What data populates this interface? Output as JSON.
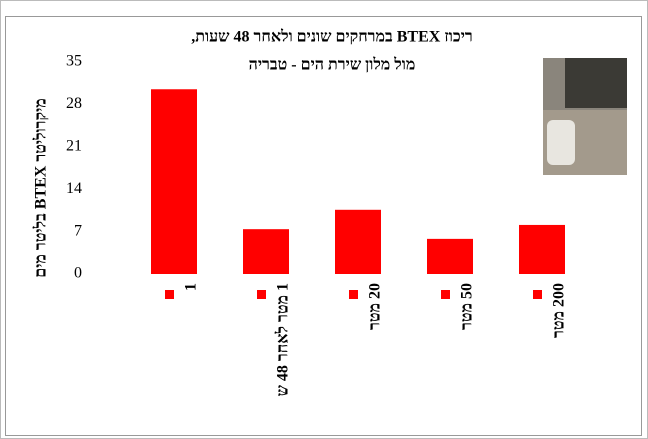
{
  "chart_data": {
    "type": "bar",
    "title": "ריכוז BTEX במרחקים שונים ולאחר 48 שעות,",
    "subtitle": "מול מלון שירת הים - טבריה",
    "y_label": "מיקרוליטר BTEX בליטר מים",
    "categories": [
      "1",
      "1 מטר לאחר 48 ש",
      "20 מטר",
      "50 מטר",
      "200 מטר"
    ],
    "values": [
      30.5,
      7.4,
      10.6,
      5.8,
      8.1
    ],
    "color": "#ff0000",
    "ylim": [
      0,
      35
    ],
    "yticks": [
      0,
      7,
      14,
      21,
      28,
      35
    ],
    "grid": false
  }
}
